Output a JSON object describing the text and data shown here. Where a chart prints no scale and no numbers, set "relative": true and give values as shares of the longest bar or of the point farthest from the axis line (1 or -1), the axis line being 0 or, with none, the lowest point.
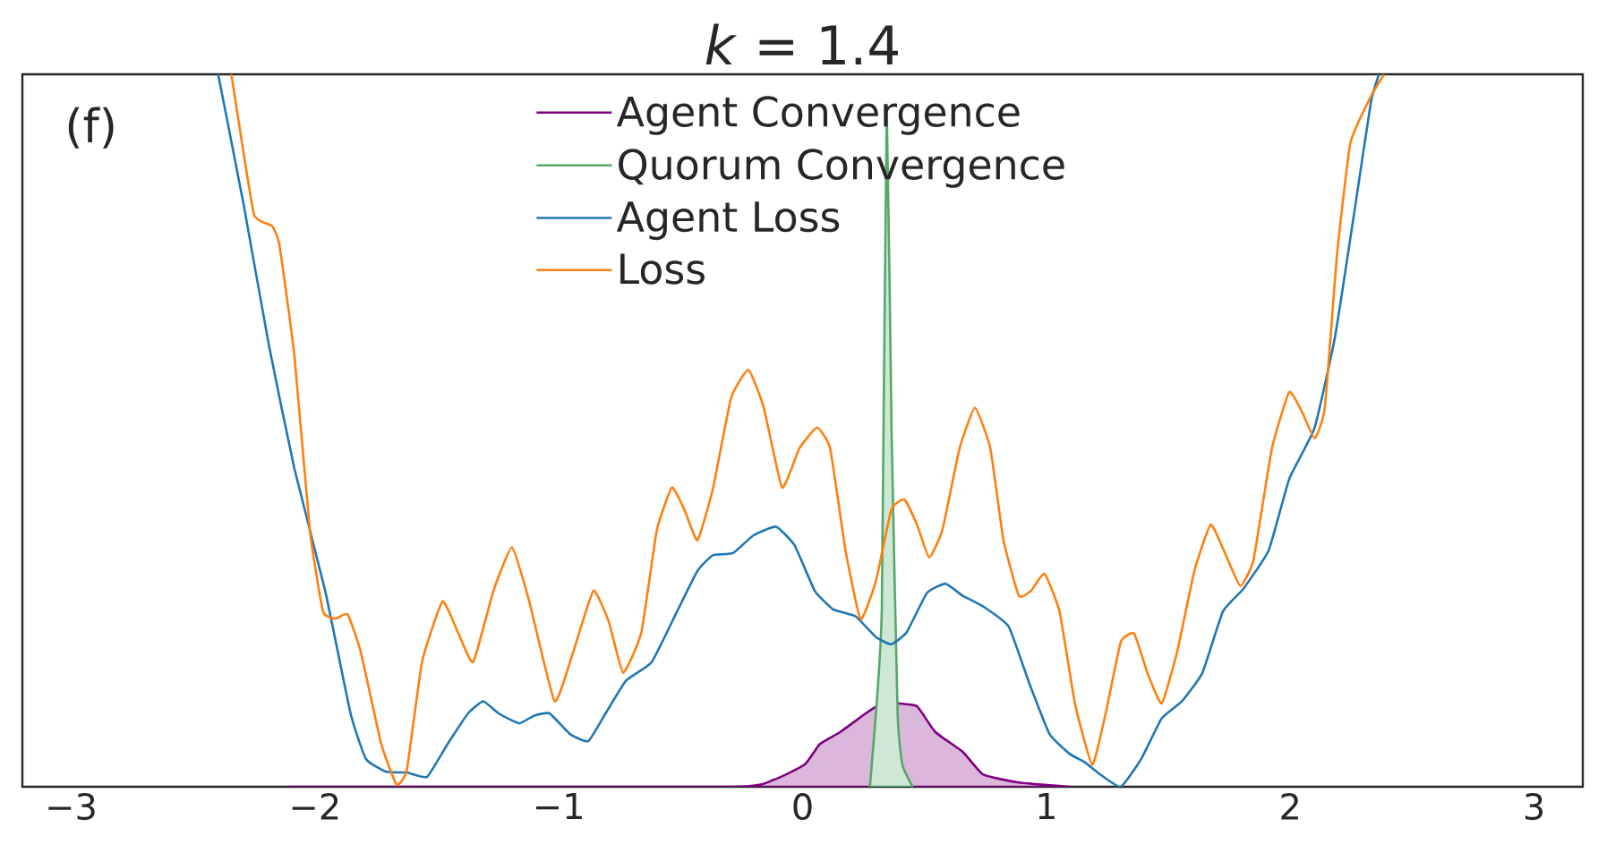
{
  "chart_data": {
    "type": "line",
    "title": "*k* = 1.4",
    "relative": true,
    "xlim": [
      -3.2,
      3.2
    ],
    "xticks": [
      {
        "value": -3,
        "label": "−3"
      },
      {
        "value": -2,
        "label": "−2"
      },
      {
        "value": -1,
        "label": "−1"
      },
      0,
      1,
      2,
      3
    ],
    "tick_labels": "x",
    "legend": "top",
    "annotations": [
      "(f)"
    ],
    "series": [
      {
        "name": "Agent Convergence",
        "type": "area",
        "color": "#800080",
        "x": [
          -2.105,
          -0.285,
          -0.117,
          0.008,
          0.071,
          0.155,
          0.259,
          0.31,
          0.36,
          0.385,
          0.469,
          0.544,
          0.657,
          0.741,
          0.887,
          1.096
        ],
        "values": [
          0,
          0,
          0.01,
          0.031,
          0.06,
          0.077,
          0.103,
          0.114,
          0.117,
          0.117,
          0.113,
          0.077,
          0.049,
          0.017,
          0.006,
          0
        ]
      },
      {
        "name": "Quorum Convergence",
        "type": "area",
        "color": "#55a868",
        "x": [
          0.276,
          0.3,
          0.325,
          0.345,
          0.365,
          0.39,
          0.41,
          0.452
        ],
        "values": [
          0,
          0.1,
          0.25,
          0.954,
          0.5,
          0.1,
          0.03,
          0
        ]
      },
      {
        "name": "Agent Loss",
        "type": "line",
        "color": "#1f77b4",
        "x": [
          -2.397,
          -2.293,
          -2.188,
          -2.084,
          -1.958,
          -1.854,
          -1.791,
          -1.707,
          -1.623,
          -1.54,
          -1.456,
          -1.372,
          -1.31,
          -1.247,
          -1.163,
          -1.1,
          -1.038,
          -0.954,
          -0.879,
          -0.808,
          -0.724,
          -0.619,
          -0.515,
          -0.431,
          -0.368,
          -0.285,
          -0.201,
          -0.109,
          -0.033,
          0.05,
          0.126,
          0.218,
          0.301,
          0.364,
          0.427,
          0.51,
          0.586,
          0.657,
          0.741,
          0.845,
          0.929,
          1.013,
          1.096,
          1.159,
          1.222,
          1.305,
          1.389,
          1.473,
          1.556,
          1.64,
          1.724,
          1.808,
          1.912,
          1.996,
          2.1,
          2.184,
          2.268,
          2.331,
          2.364
        ],
        "values": [
          1.0,
          0.818,
          0.618,
          0.446,
          0.275,
          0.103,
          0.039,
          0.021,
          0.02,
          0.014,
          0.06,
          0.103,
          0.12,
          0.103,
          0.089,
          0.1,
          0.103,
          0.074,
          0.064,
          0.103,
          0.149,
          0.175,
          0.246,
          0.303,
          0.325,
          0.328,
          0.353,
          0.365,
          0.339,
          0.275,
          0.249,
          0.239,
          0.21,
          0.2,
          0.217,
          0.272,
          0.285,
          0.268,
          0.253,
          0.225,
          0.146,
          0.074,
          0.046,
          0.034,
          0.017,
          0.0,
          0.039,
          0.096,
          0.12,
          0.16,
          0.246,
          0.278,
          0.332,
          0.432,
          0.504,
          0.632,
          0.818,
          0.961,
          1.0
        ]
      },
      {
        "name": "Loss",
        "type": "line",
        "color": "#ff7f0e",
        "x": [
          -2.343,
          -2.293,
          -2.251,
          -2.218,
          -2.176,
          -2.146,
          -2.084,
          -2.021,
          -1.967,
          -1.916,
          -1.866,
          -1.812,
          -1.728,
          -1.665,
          -1.623,
          -1.561,
          -1.477,
          -1.414,
          -1.351,
          -1.268,
          -1.192,
          -1.121,
          -1.017,
          -0.941,
          -0.858,
          -0.795,
          -0.736,
          -0.661,
          -0.598,
          -0.536,
          -0.485,
          -0.431,
          -0.368,
          -0.293,
          -0.222,
          -0.159,
          -0.084,
          -0.013,
          0.059,
          0.113,
          0.176,
          0.238,
          0.301,
          0.364,
          0.418,
          0.469,
          0.519,
          0.573,
          0.644,
          0.707,
          0.77,
          0.824,
          0.887,
          0.937,
          0.992,
          1.054,
          1.117,
          1.188,
          1.243,
          1.305,
          1.36,
          1.414,
          1.473,
          1.536,
          1.607,
          1.674,
          1.736,
          1.795,
          1.849,
          1.925,
          1.996,
          2.05,
          2.1,
          2.142,
          2.192,
          2.247,
          2.331,
          2.385
        ],
        "values": [
          1.0,
          0.89,
          0.804,
          0.793,
          0.787,
          0.761,
          0.604,
          0.36,
          0.246,
          0.236,
          0.242,
          0.189,
          0.06,
          0.003,
          0.024,
          0.175,
          0.26,
          0.217,
          0.175,
          0.275,
          0.336,
          0.26,
          0.12,
          0.189,
          0.275,
          0.232,
          0.16,
          0.217,
          0.36,
          0.42,
          0.389,
          0.346,
          0.418,
          0.546,
          0.585,
          0.532,
          0.42,
          0.475,
          0.504,
          0.475,
          0.332,
          0.235,
          0.289,
          0.389,
          0.403,
          0.368,
          0.322,
          0.36,
          0.475,
          0.532,
          0.475,
          0.346,
          0.268,
          0.275,
          0.299,
          0.246,
          0.117,
          0.031,
          0.103,
          0.203,
          0.215,
          0.16,
          0.117,
          0.189,
          0.303,
          0.368,
          0.325,
          0.282,
          0.318,
          0.475,
          0.554,
          0.525,
          0.489,
          0.532,
          0.747,
          0.904,
          0.969,
          1.0
        ]
      }
    ]
  }
}
